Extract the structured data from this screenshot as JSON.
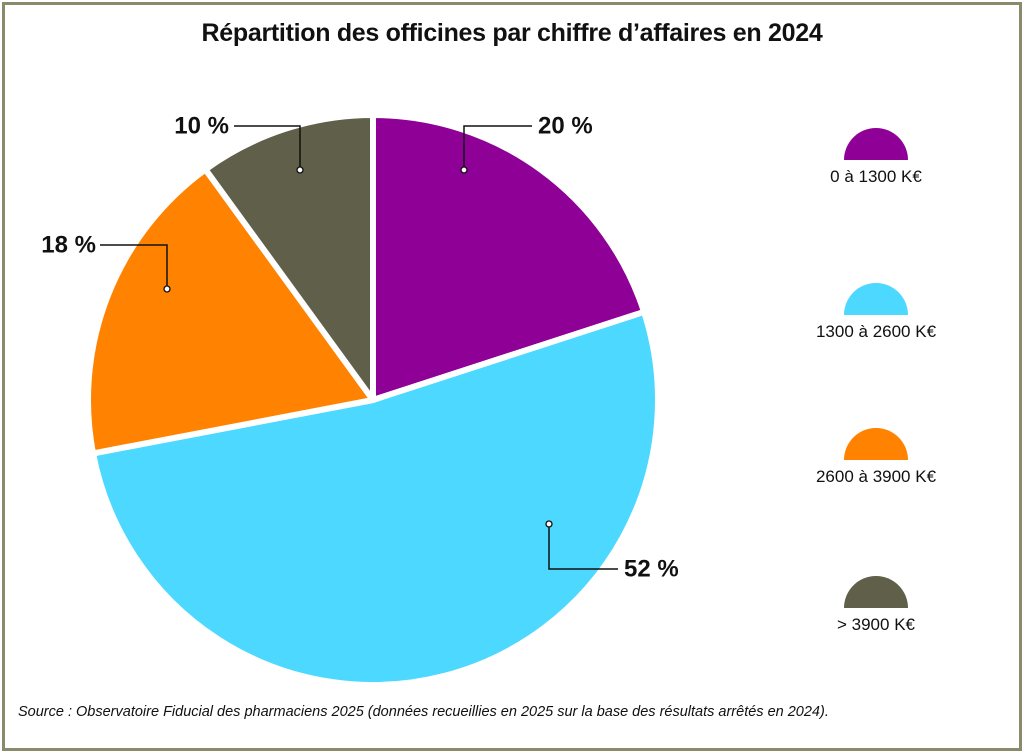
{
  "chart_data": {
    "type": "pie",
    "title": "Répartition des officines par chiffre d’affaires en 2024",
    "slices": [
      {
        "label": "0 à 1300 K€",
        "value": 20,
        "display": "20 %",
        "color": "#8e0096"
      },
      {
        "label": "1300 à 2600 K€",
        "value": 52,
        "display": "52 %",
        "color": "#4dd8ff"
      },
      {
        "label": "2600 à 3900 K€",
        "value": 18,
        "display": "18 %",
        "color": "#ff8200"
      },
      {
        "label": "> 3900 K€",
        "value": 10,
        "display": "10 %",
        "color": "#5f5f4a"
      }
    ],
    "legend_position": "right"
  },
  "source": "Source : Observatoire Fiducial des pharmaciens 2025 (données recueillies en 2025 sur la base des résultats arrêtés en 2024)."
}
